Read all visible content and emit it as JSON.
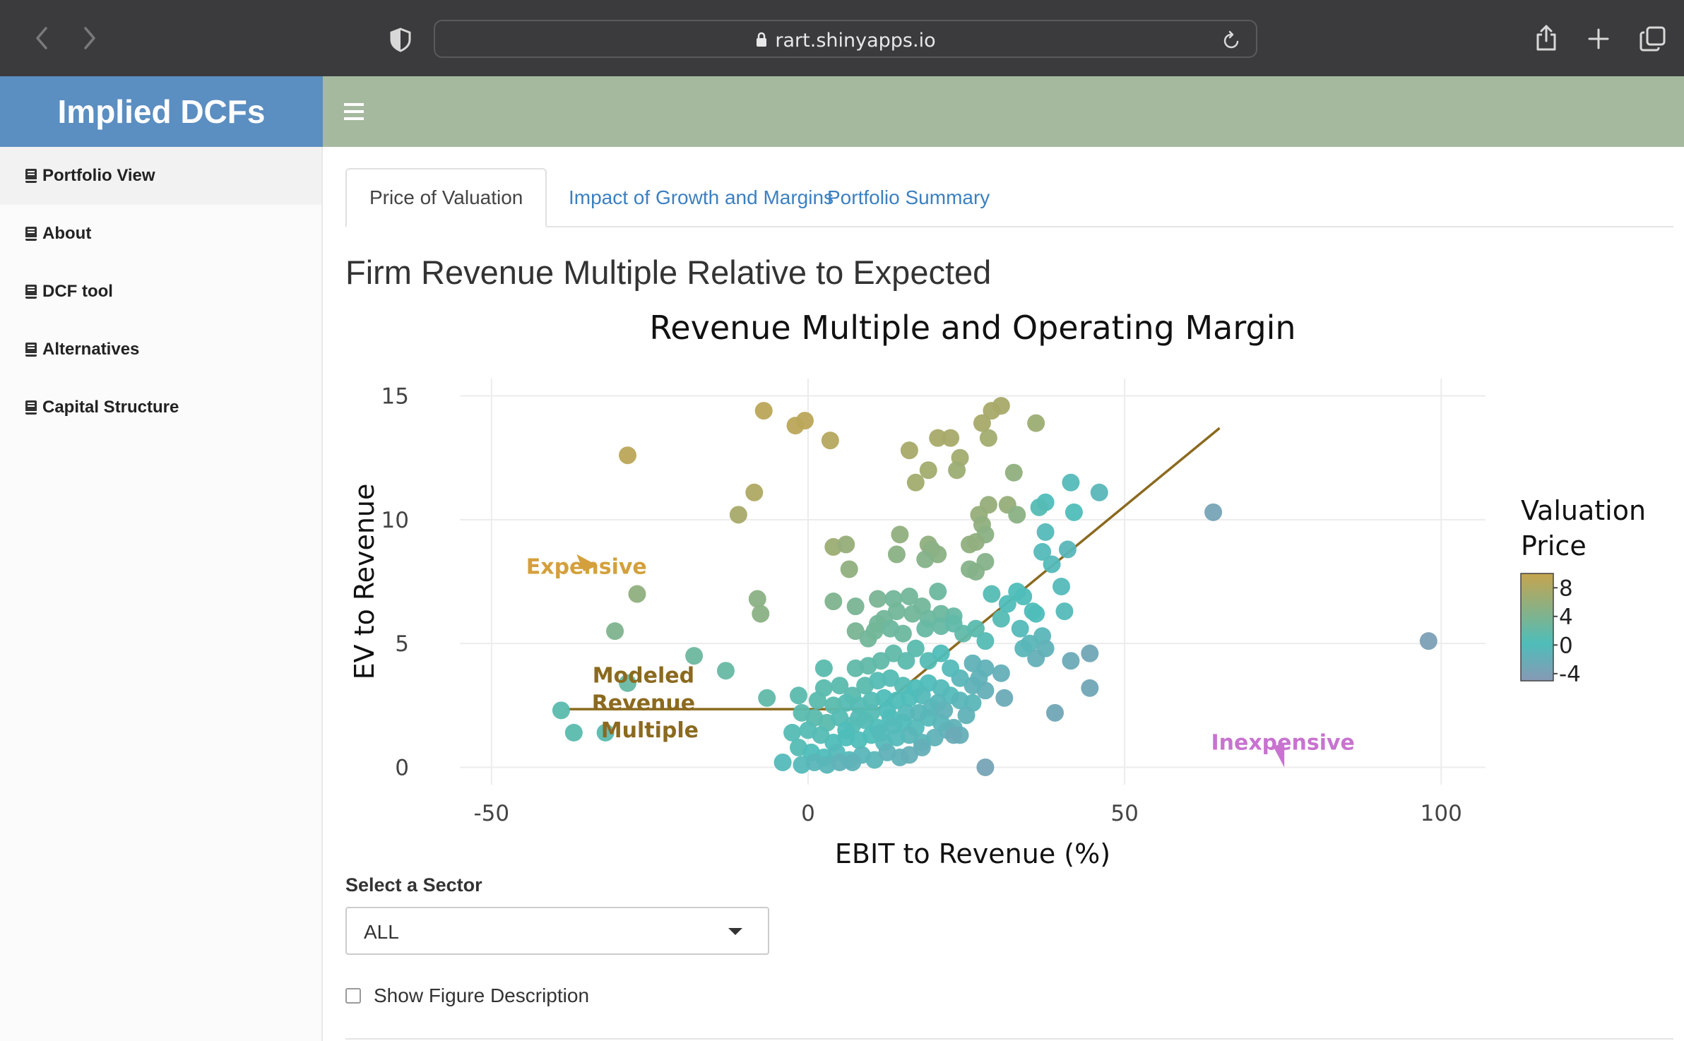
{
  "browser": {
    "url": "rart.shinyapps.io",
    "icons": [
      "back-arrow-icon",
      "forward-arrow-icon",
      "shield-icon",
      "lock-icon",
      "reload-icon",
      "share-icon",
      "new-tab-plus-icon",
      "tabs-overview-icon"
    ]
  },
  "app": {
    "title": "Implied DCFs"
  },
  "sidebar": {
    "items": [
      {
        "label": "Portfolio View",
        "active": true
      },
      {
        "label": "About"
      },
      {
        "label": "DCF tool"
      },
      {
        "label": "Alternatives"
      },
      {
        "label": "Capital Structure"
      }
    ]
  },
  "tabs": [
    {
      "label": "Price of Valuation",
      "active": true
    },
    {
      "label": "Impact of Growth and Margins"
    },
    {
      "label": "Portfolio Summary"
    }
  ],
  "main": {
    "title": "Firm Revenue Multiple Relative to Expected"
  },
  "chart_data": {
    "type": "scatter",
    "title": "Revenue Multiple and Operating Margin",
    "xlabel": "EBIT to Revenue (%)",
    "ylabel": "EV to Revenue",
    "xlim": [
      -55,
      107
    ],
    "ylim": [
      -0.7,
      15.7
    ],
    "xticks": [
      -50,
      0,
      50,
      100
    ],
    "yticks": [
      0,
      5,
      10,
      15
    ],
    "grid": true,
    "colorbar": {
      "title_lines": [
        "Valuation",
        "Price"
      ],
      "ticks": [
        8,
        4,
        0,
        -4
      ],
      "range": [
        -5,
        10
      ],
      "colors": {
        "low": "#8799b4",
        "mid": "#4fbdb9",
        "high": "#c6a44e"
      }
    },
    "model_line": {
      "name": "Modeled Revenue Multiple",
      "color": "#8b6a1f",
      "x": [
        -38,
        11,
        65
      ],
      "y": [
        2.35,
        2.35,
        13.7
      ]
    },
    "annotations": [
      {
        "text": "Expensive",
        "x": -35,
        "y": 8.1,
        "color": "#d4a03c",
        "arrow_to": [
          -35,
          8.6
        ]
      },
      {
        "text": "Modeled",
        "x": -26,
        "y": 3.7,
        "color": "#8b6a1f"
      },
      {
        "text": "Revenue",
        "x": -26,
        "y": 2.6,
        "color": "#8b6a1f"
      },
      {
        "text": "Multiple",
        "x": -25,
        "y": 1.5,
        "color": "#8b6a1f"
      },
      {
        "text": "Inexpensive",
        "x": 75,
        "y": 1.0,
        "color": "#c873d0",
        "arrow_to": [
          75,
          0
        ]
      }
    ],
    "points": [
      [
        -7,
        14.4,
        9
      ],
      [
        -2,
        13.8,
        9
      ],
      [
        -0.5,
        14.0,
        9
      ],
      [
        3.5,
        13.2,
        8.5
      ],
      [
        -28.5,
        12.6,
        9
      ],
      [
        -8.5,
        11.1,
        8
      ],
      [
        -11,
        10.2,
        7.5
      ],
      [
        16,
        12.8,
        7.5
      ],
      [
        20.5,
        13.3,
        7.5
      ],
      [
        22.5,
        13.3,
        7.5
      ],
      [
        27.5,
        13.9,
        7.5
      ],
      [
        29,
        14.4,
        7.5
      ],
      [
        30.5,
        14.6,
        7.5
      ],
      [
        28.5,
        13.3,
        7
      ],
      [
        36,
        13.9,
        6.5
      ],
      [
        24,
        12.5,
        7
      ],
      [
        19,
        12.0,
        7
      ],
      [
        23.5,
        12.0,
        6.5
      ],
      [
        17,
        11.5,
        7
      ],
      [
        32.5,
        11.9,
        5.5
      ],
      [
        28.5,
        10.6,
        6
      ],
      [
        31.5,
        10.6,
        6
      ],
      [
        27,
        10.2,
        6
      ],
      [
        33,
        10.2,
        5
      ],
      [
        27.5,
        9.8,
        5.5
      ],
      [
        28,
        9.4,
        5
      ],
      [
        26.5,
        9.1,
        5.5
      ],
      [
        25.5,
        9.0,
        5.5
      ],
      [
        28,
        8.3,
        4.5
      ],
      [
        26.5,
        7.9,
        4.5
      ],
      [
        25.5,
        8.0,
        4.5
      ],
      [
        14.5,
        9.4,
        5.5
      ],
      [
        14,
        8.6,
        5
      ],
      [
        19,
        9.0,
        5.5
      ],
      [
        19.5,
        8.8,
        5
      ],
      [
        20.5,
        8.6,
        5
      ],
      [
        18.5,
        8.4,
        4.5
      ],
      [
        4,
        8.9,
        6.5
      ],
      [
        6,
        9.0,
        6
      ],
      [
        6.5,
        8.0,
        5.5
      ],
      [
        -27,
        7.0,
        5.5
      ],
      [
        -8,
        6.8,
        5
      ],
      [
        -7.5,
        6.2,
        5
      ],
      [
        -30.5,
        5.5,
        4
      ],
      [
        -18,
        4.5,
        2.5
      ],
      [
        -13,
        3.9,
        2
      ],
      [
        -28.5,
        3.4,
        2
      ],
      [
        -39,
        2.3,
        1
      ],
      [
        -37,
        1.4,
        1
      ],
      [
        -32,
        1.4,
        1
      ],
      [
        4,
        6.7,
        4
      ],
      [
        7.5,
        6.5,
        3.5
      ],
      [
        11,
        6.8,
        3.5
      ],
      [
        13.5,
        6.8,
        3
      ],
      [
        16,
        6.9,
        3
      ],
      [
        20.5,
        7.1,
        2.5
      ],
      [
        18,
        6.5,
        3
      ],
      [
        21,
        6.2,
        2.5
      ],
      [
        23,
        6.1,
        2
      ],
      [
        19,
        6.0,
        2.5
      ],
      [
        16.5,
        6.2,
        3
      ],
      [
        14,
        6.3,
        3
      ],
      [
        12,
        6.0,
        3
      ],
      [
        10.5,
        5.5,
        3
      ],
      [
        7.5,
        5.5,
        3.5
      ],
      [
        9.5,
        5.2,
        3
      ],
      [
        11,
        5.8,
        3
      ],
      [
        13,
        5.6,
        2.5
      ],
      [
        15,
        5.4,
        2.5
      ],
      [
        18.5,
        5.6,
        2
      ],
      [
        21,
        5.7,
        2
      ],
      [
        23,
        5.8,
        1.5
      ],
      [
        24.5,
        5.4,
        1.5
      ],
      [
        26.5,
        5.6,
        1
      ],
      [
        28,
        5.1,
        0.5
      ],
      [
        30.5,
        6.0,
        0.5
      ],
      [
        29,
        7.0,
        0.5
      ],
      [
        31.5,
        6.6,
        0
      ],
      [
        33,
        7.1,
        0
      ],
      [
        34,
        6.9,
        0
      ],
      [
        35.5,
        6.3,
        0
      ],
      [
        40,
        7.3,
        -0.5
      ],
      [
        40.5,
        6.3,
        -0.5
      ],
      [
        41,
        8.8,
        -1
      ],
      [
        38.5,
        8.2,
        -0.5
      ],
      [
        37.5,
        9.5,
        -0.5
      ],
      [
        37,
        8.7,
        -0.5
      ],
      [
        37.5,
        10.7,
        0
      ],
      [
        36.5,
        10.5,
        0.5
      ],
      [
        42,
        10.3,
        0
      ],
      [
        41.5,
        11.5,
        -0.5
      ],
      [
        46,
        11.1,
        -1
      ],
      [
        64,
        10.3,
        -3.5
      ],
      [
        98,
        5.1,
        -4
      ],
      [
        36,
        6.2,
        0
      ],
      [
        33.5,
        5.6,
        -0.5
      ],
      [
        35,
        5.0,
        -1
      ],
      [
        37,
        5.3,
        -1
      ],
      [
        37.5,
        4.8,
        -1.5
      ],
      [
        36,
        4.4,
        -2
      ],
      [
        34,
        4.8,
        -1
      ],
      [
        41.5,
        4.3,
        -2.5
      ],
      [
        44.5,
        4.6,
        -3
      ],
      [
        44.5,
        3.2,
        -3
      ],
      [
        39,
        2.2,
        -3
      ],
      [
        28,
        0,
        -3.5
      ],
      [
        26,
        4.2,
        -1.5
      ],
      [
        28,
        4.0,
        -1.5
      ],
      [
        30.5,
        3.8,
        -2
      ],
      [
        27,
        3.6,
        -1.5
      ],
      [
        31,
        2.8,
        -2.5
      ],
      [
        28,
        3.1,
        -2
      ],
      [
        26,
        3.3,
        -1.5
      ],
      [
        24,
        3.6,
        -1
      ],
      [
        22.5,
        4.0,
        -0.5
      ],
      [
        21,
        4.6,
        0
      ],
      [
        19,
        4.3,
        0.5
      ],
      [
        17,
        4.8,
        1
      ],
      [
        15.5,
        4.3,
        1
      ],
      [
        13.5,
        4.6,
        1.5
      ],
      [
        11.5,
        4.3,
        1.5
      ],
      [
        9.5,
        4.1,
        1.5
      ],
      [
        7.5,
        4.0,
        1.5
      ],
      [
        2.5,
        4.0,
        1
      ],
      [
        2.5,
        3.2,
        1
      ],
      [
        5,
        3.3,
        1
      ],
      [
        7,
        2.9,
        1
      ],
      [
        9,
        3.3,
        1
      ],
      [
        11,
        3.5,
        0.5
      ],
      [
        13,
        3.6,
        0.5
      ],
      [
        15,
        3.3,
        0.5
      ],
      [
        17,
        3.2,
        0
      ],
      [
        19,
        3.4,
        0
      ],
      [
        21,
        3.2,
        -0.5
      ],
      [
        22.5,
        2.9,
        -0.5
      ],
      [
        24,
        2.7,
        -1
      ],
      [
        26,
        2.6,
        -1
      ],
      [
        20.5,
        2.6,
        -1
      ],
      [
        18,
        2.9,
        -0.5
      ],
      [
        16,
        2.8,
        0
      ],
      [
        14,
        2.7,
        0
      ],
      [
        12,
        2.8,
        0
      ],
      [
        10,
        2.7,
        0.5
      ],
      [
        8,
        2.5,
        0.5
      ],
      [
        6,
        2.6,
        0.5
      ],
      [
        4,
        2.5,
        1
      ],
      [
        1.5,
        2.7,
        1
      ],
      [
        -1.5,
        2.9,
        1
      ],
      [
        -6.5,
        2.8,
        1.5
      ],
      [
        -1,
        2.2,
        1
      ],
      [
        1,
        2.0,
        1
      ],
      [
        3,
        1.8,
        1
      ],
      [
        5,
        2.0,
        0.5
      ],
      [
        7,
        1.7,
        0.5
      ],
      [
        9,
        1.9,
        0.5
      ],
      [
        11,
        1.6,
        0
      ],
      [
        13,
        2.0,
        0
      ],
      [
        15,
        1.8,
        0
      ],
      [
        17,
        1.6,
        -0.5
      ],
      [
        19,
        2.0,
        -0.5
      ],
      [
        21,
        1.8,
        -1
      ],
      [
        23,
        1.6,
        -1.5
      ],
      [
        25,
        2.1,
        -1.5
      ],
      [
        24,
        1.3,
        -2
      ],
      [
        22,
        1.5,
        -1.5
      ],
      [
        20,
        1.2,
        -1.5
      ],
      [
        18,
        1.0,
        -1
      ],
      [
        16,
        1.3,
        -1
      ],
      [
        14,
        1.2,
        -0.5
      ],
      [
        12,
        1.0,
        -0.5
      ],
      [
        10,
        1.3,
        0
      ],
      [
        8,
        1.1,
        0
      ],
      [
        6,
        1.2,
        0
      ],
      [
        4,
        1.0,
        0
      ],
      [
        2,
        1.3,
        0.5
      ],
      [
        0,
        1.5,
        0.5
      ],
      [
        -2.5,
        1.4,
        0.5
      ],
      [
        -1.5,
        0.8,
        0.5
      ],
      [
        0.5,
        0.6,
        0
      ],
      [
        2.5,
        0.4,
        0
      ],
      [
        4.5,
        0.6,
        -0.5
      ],
      [
        6.5,
        0.3,
        -0.5
      ],
      [
        8.5,
        0.5,
        -1
      ],
      [
        10.5,
        0.3,
        -1
      ],
      [
        12.5,
        0.6,
        -1.5
      ],
      [
        14.5,
        0.4,
        -1.5
      ],
      [
        16,
        0.5,
        -2
      ],
      [
        18,
        0.8,
        -2
      ],
      [
        23,
        1.3,
        -2.5
      ],
      [
        -4,
        0.2,
        -0.5
      ],
      [
        -1,
        0.1,
        -0.5
      ],
      [
        1,
        0.2,
        -1
      ],
      [
        3,
        0.1,
        -1
      ],
      [
        5,
        0.2,
        -1.5
      ],
      [
        7,
        0.2,
        -1.5
      ],
      [
        12.5,
        2.3,
        0
      ],
      [
        13.5,
        1.7,
        -0.5
      ],
      [
        15.5,
        2.2,
        -0.5
      ],
      [
        17.5,
        2.2,
        -1
      ],
      [
        19.5,
        2.4,
        -1
      ],
      [
        21.5,
        2.3,
        -1.5
      ],
      [
        10,
        2.2,
        0.5
      ],
      [
        8,
        2.0,
        0.5
      ],
      [
        6,
        1.5,
        0
      ],
      [
        11.5,
        1.4,
        -0.5
      ]
    ]
  },
  "controls": {
    "sector_label": "Select a Sector",
    "sector_value": "ALL",
    "show_description_label": "Show Figure Description"
  }
}
